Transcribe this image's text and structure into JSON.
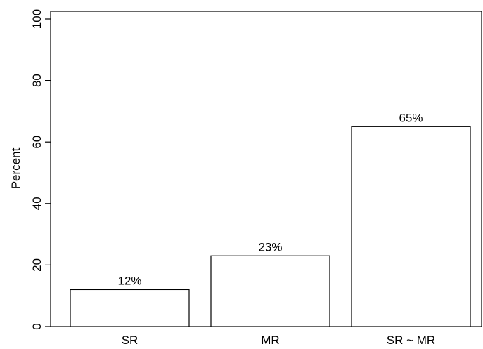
{
  "chart_data": {
    "type": "bar",
    "categories": [
      "SR",
      "MR",
      "SR ~ MR"
    ],
    "values": [
      12,
      23,
      65
    ],
    "data_labels": [
      "12%",
      "23%",
      "65%"
    ],
    "title": "",
    "xlabel": "",
    "ylabel": "Percent",
    "ylim": [
      0,
      100
    ],
    "yticks": [
      0,
      20,
      40,
      60,
      80,
      100
    ],
    "ytick_labels": [
      "0",
      "20",
      "40",
      "60",
      "80",
      "100"
    ],
    "grid": false,
    "bar_fill": "#ffffff",
    "bar_stroke": "#000000"
  }
}
